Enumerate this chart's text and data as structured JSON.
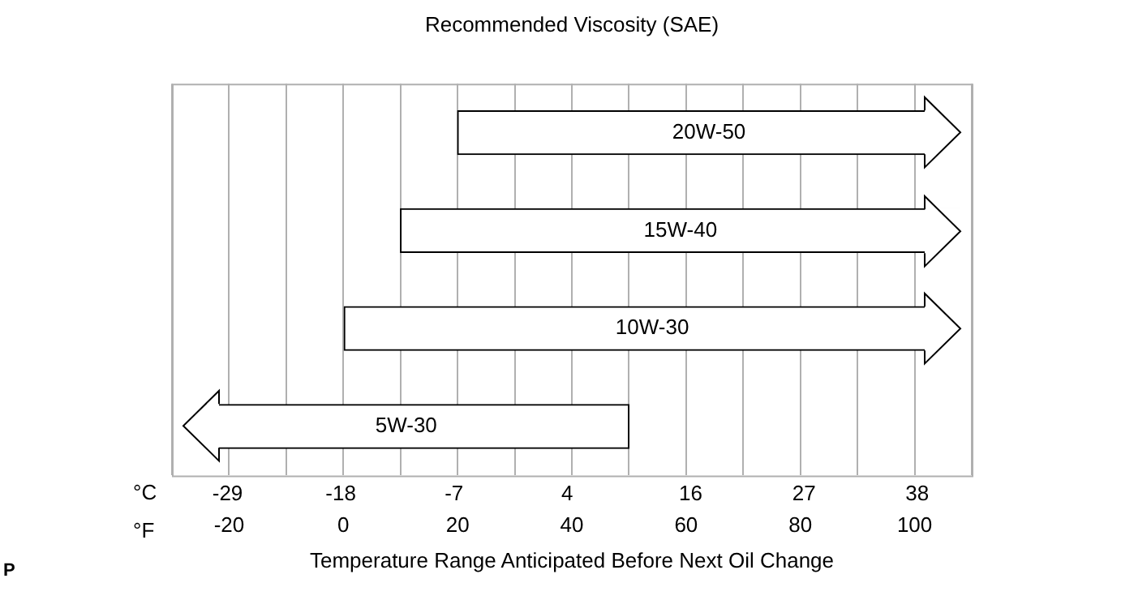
{
  "chart_data": {
    "type": "bar",
    "orientation": "horizontal",
    "title": "Recommended Viscosity (SAE)",
    "xlabel": "Temperature Range Anticipated Before Next Oil Change",
    "categories": [
      "20W-50",
      "15W-40",
      "10W-30",
      "5W-30"
    ],
    "base": [
      108,
      108,
      108,
      -28
    ],
    "values": [
      -88,
      -98,
      -108,
      78
    ],
    "color": "#ffffff",
    "xlim": [
      -30,
      110
    ],
    "xticks": [
      {
        "value": -30,
        "label": null
      },
      -20,
      {
        "value": -10,
        "label": null
      },
      0,
      {
        "value": 10,
        "label": null
      },
      20,
      {
        "value": 30,
        "label": null
      },
      40,
      {
        "value": 50,
        "label": null
      },
      60,
      {
        "value": 70,
        "label": null
      },
      80,
      {
        "value": 90,
        "label": null
      },
      100,
      {
        "value": 110,
        "label": null
      }
    ],
    "x2lim": [
      -34.4,
      43.3
    ],
    "x2ticks": [
      -29,
      -18,
      -7,
      4,
      16,
      27,
      38
    ],
    "grid": "x",
    "tick_labels": "x",
    "legend": false,
    "annotations": [
      "°C",
      "°F",
      "P"
    ]
  }
}
